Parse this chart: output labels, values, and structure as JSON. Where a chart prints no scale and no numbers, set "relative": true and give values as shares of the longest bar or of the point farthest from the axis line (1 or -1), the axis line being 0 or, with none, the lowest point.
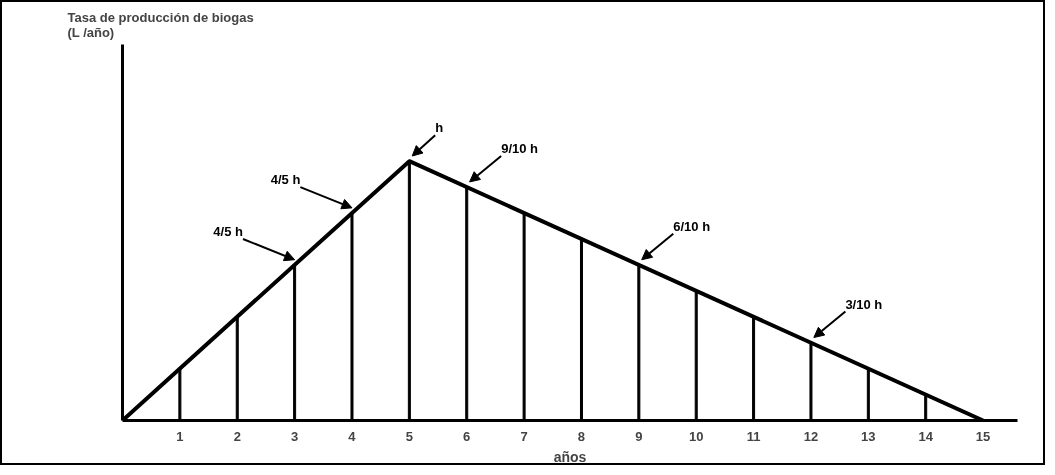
{
  "chart_data": {
    "type": "line",
    "relative": true,
    "xlabel": "años",
    "xlim": [
      0,
      15.6
    ],
    "xticks": [
      1,
      2,
      3,
      4,
      5,
      6,
      7,
      8,
      9,
      10,
      11,
      12,
      13,
      14,
      15
    ],
    "series": [
      {
        "type": "bar",
        "color": "#000000",
        "x": [
          1,
          2,
          3,
          4,
          5,
          6,
          7,
          8,
          9,
          10,
          11,
          12,
          13,
          14
        ],
        "values": [
          0.2,
          0.4,
          0.6,
          0.8,
          1,
          0.9,
          0.8,
          0.7,
          0.6,
          0.5,
          0.4,
          0.3,
          0.2,
          0.1
        ]
      },
      {
        "color": "#000000",
        "x": [
          0,
          5,
          15
        ],
        "values": [
          0,
          1,
          0
        ]
      }
    ],
    "annotations": [
      "Tasa de producción de biogas\n(L /año)",
      {
        "text": "h",
        "x": 5,
        "y": 1
      },
      {
        "text": "9/10 h",
        "x": 6,
        "y": 0.9
      },
      {
        "text": "4/5 h",
        "x": 4,
        "y": 0.8
      },
      {
        "text": "4/5 h",
        "x": 3,
        "y": 0.6
      },
      {
        "text": "6/10 h",
        "x": 9,
        "y": 0.6
      },
      {
        "text": "3/10 h",
        "x": 12,
        "y": 0.3
      }
    ],
    "grid": false
  }
}
